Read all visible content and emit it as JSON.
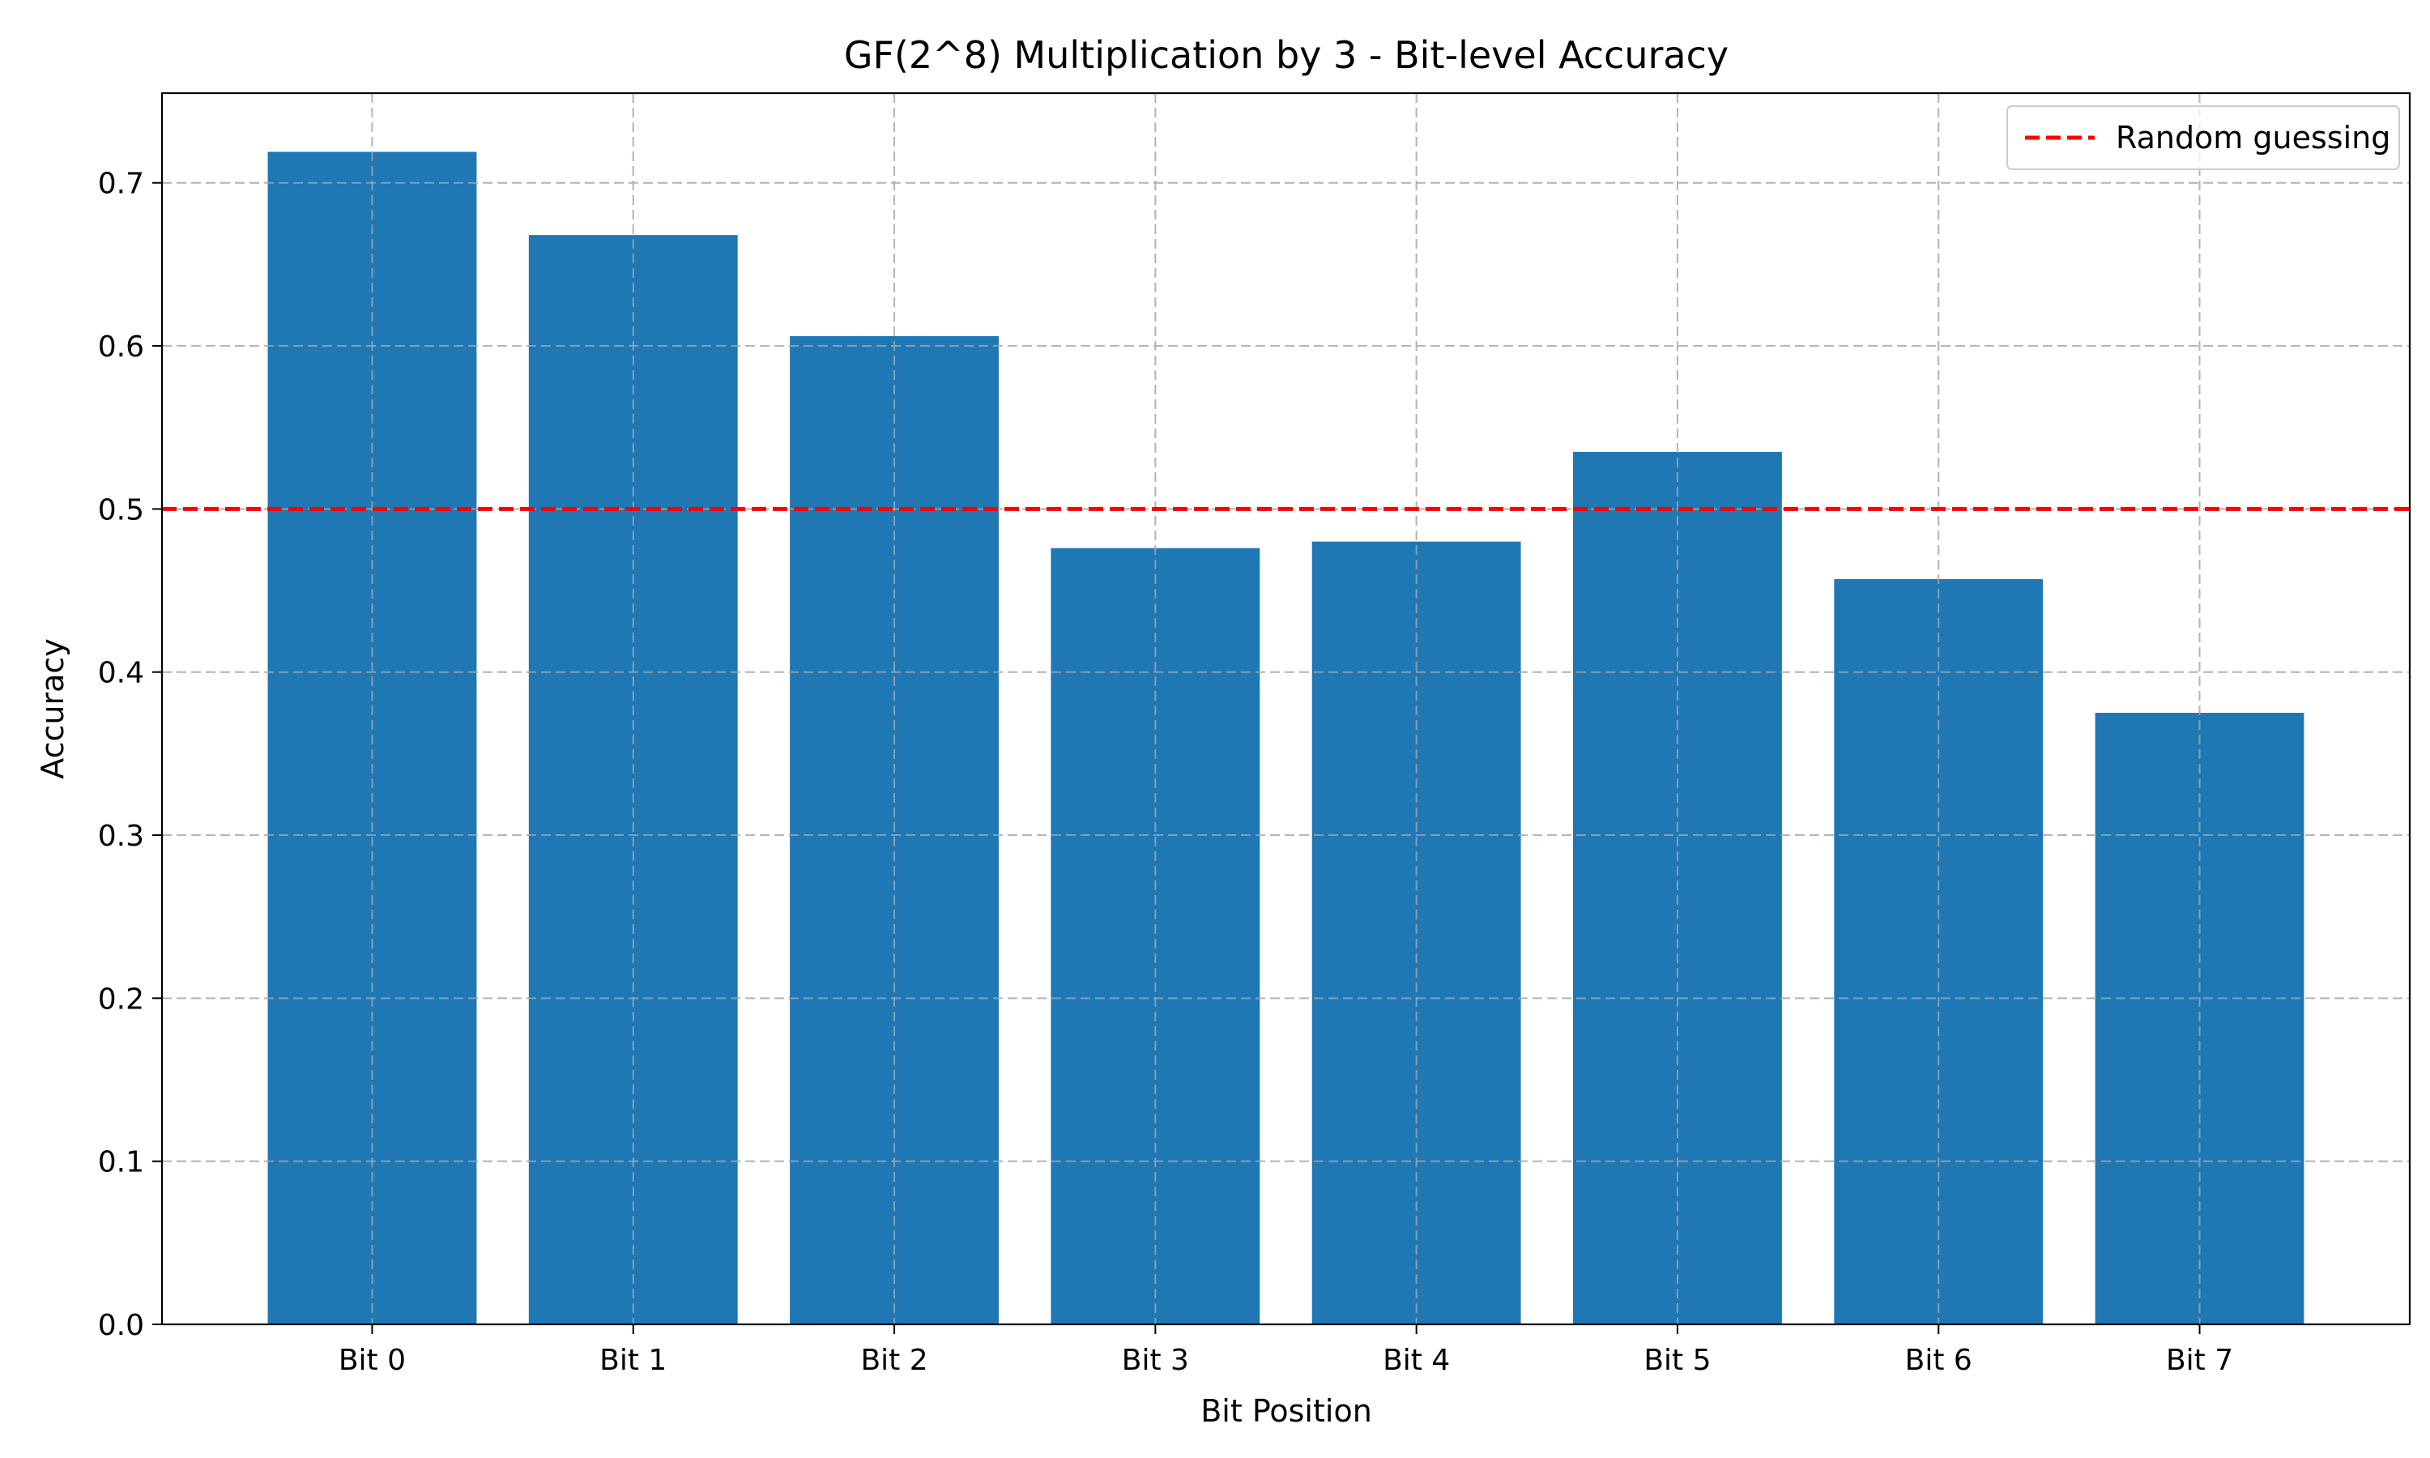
{
  "chart_data": {
    "type": "bar",
    "title": "GF(2^8) Multiplication by 3 - Bit-level Accuracy",
    "xlabel": "Bit Position",
    "ylabel": "Accuracy",
    "categories": [
      "Bit 0",
      "Bit 1",
      "Bit 2",
      "Bit 3",
      "Bit 4",
      "Bit 5",
      "Bit 6",
      "Bit 7"
    ],
    "values": [
      0.719,
      0.668,
      0.606,
      0.476,
      0.48,
      0.535,
      0.457,
      0.375
    ],
    "ylim": [
      0,
      0.755
    ],
    "yticks": [
      0.0,
      0.1,
      0.2,
      0.3,
      0.4,
      0.5,
      0.6,
      0.7
    ],
    "ytick_labels": [
      "0.0",
      "0.1",
      "0.2",
      "0.3",
      "0.4",
      "0.5",
      "0.6",
      "0.7"
    ],
    "reference_line": {
      "y": 0.5,
      "label": "Random guessing",
      "style": "dashed",
      "color": "#ff0000"
    },
    "bar_color": "#1f77b4",
    "grid": true,
    "legend_position": "top-right"
  }
}
